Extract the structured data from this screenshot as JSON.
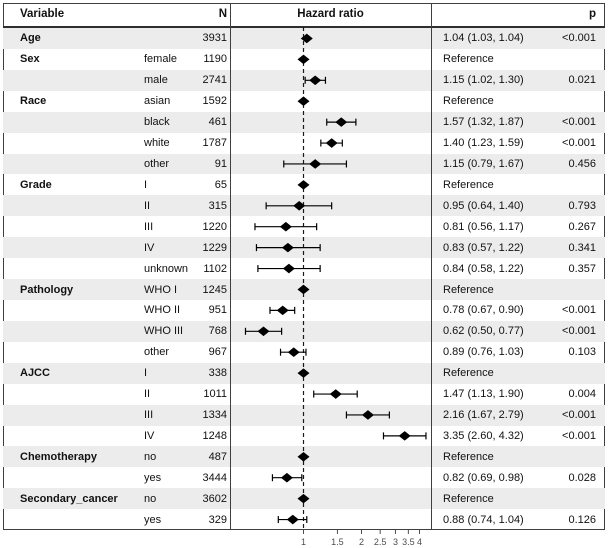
{
  "table": {
    "headers": {
      "variable": "Variable",
      "n": "N",
      "hazard_ratio": "Hazard ratio",
      "p": "p"
    }
  },
  "chart_data": {
    "type": "forest",
    "title": "Hazard ratio",
    "x_scale": "log",
    "x_domain": [
      0.42,
      4.6
    ],
    "x_ticks": [
      1,
      1.5,
      2,
      2.5,
      3,
      3.5,
      4
    ],
    "reference_line": 1,
    "legend": "none",
    "rows": [
      {
        "group": "Age",
        "level": "",
        "n": "3931",
        "ref": false,
        "hr": 1.04,
        "lo": 1.03,
        "hi": 1.04,
        "hr_text": "1.04 (1.03, 1.04)",
        "p": "<0.001"
      },
      {
        "group": "Sex",
        "level": "female",
        "n": "1190",
        "ref": true,
        "hr": 1.0,
        "lo": null,
        "hi": null,
        "hr_text": "Reference",
        "p": ""
      },
      {
        "group": "",
        "level": "male",
        "n": "2741",
        "ref": false,
        "hr": 1.15,
        "lo": 1.02,
        "hi": 1.3,
        "hr_text": "1.15 (1.02, 1.30)",
        "p": "0.021"
      },
      {
        "group": "Race",
        "level": "asian",
        "n": "1592",
        "ref": true,
        "hr": 1.0,
        "lo": null,
        "hi": null,
        "hr_text": "Reference",
        "p": ""
      },
      {
        "group": "",
        "level": "black",
        "n": "461",
        "ref": false,
        "hr": 1.57,
        "lo": 1.32,
        "hi": 1.87,
        "hr_text": "1.57 (1.32, 1.87)",
        "p": "<0.001"
      },
      {
        "group": "",
        "level": "white",
        "n": "1787",
        "ref": false,
        "hr": 1.4,
        "lo": 1.23,
        "hi": 1.59,
        "hr_text": "1.40 (1.23, 1.59)",
        "p": "<0.001"
      },
      {
        "group": "",
        "level": "other",
        "n": "91",
        "ref": false,
        "hr": 1.15,
        "lo": 0.79,
        "hi": 1.67,
        "hr_text": "1.15 (0.79, 1.67)",
        "p": "0.456"
      },
      {
        "group": "Grade",
        "level": "I",
        "n": "65",
        "ref": true,
        "hr": 1.0,
        "lo": null,
        "hi": null,
        "hr_text": "Reference",
        "p": ""
      },
      {
        "group": "",
        "level": "II",
        "n": "315",
        "ref": false,
        "hr": 0.95,
        "lo": 0.64,
        "hi": 1.4,
        "hr_text": "0.95 (0.64, 1.40)",
        "p": "0.793"
      },
      {
        "group": "",
        "level": "III",
        "n": "1220",
        "ref": false,
        "hr": 0.81,
        "lo": 0.56,
        "hi": 1.17,
        "hr_text": "0.81 (0.56, 1.17)",
        "p": "0.267"
      },
      {
        "group": "",
        "level": "IV",
        "n": "1229",
        "ref": false,
        "hr": 0.83,
        "lo": 0.57,
        "hi": 1.22,
        "hr_text": "0.83 (0.57, 1.22)",
        "p": "0.341"
      },
      {
        "group": "",
        "level": "unknown",
        "n": "1102",
        "ref": false,
        "hr": 0.84,
        "lo": 0.58,
        "hi": 1.22,
        "hr_text": "0.84 (0.58, 1.22)",
        "p": "0.357"
      },
      {
        "group": "Pathology",
        "level": "WHO I",
        "n": "1245",
        "ref": true,
        "hr": 1.0,
        "lo": null,
        "hi": null,
        "hr_text": "Reference",
        "p": ""
      },
      {
        "group": "",
        "level": "WHO II",
        "n": "951",
        "ref": false,
        "hr": 0.78,
        "lo": 0.67,
        "hi": 0.9,
        "hr_text": "0.78 (0.67, 0.90)",
        "p": "<0.001"
      },
      {
        "group": "",
        "level": "WHO III",
        "n": "768",
        "ref": false,
        "hr": 0.62,
        "lo": 0.5,
        "hi": 0.77,
        "hr_text": "0.62 (0.50, 0.77)",
        "p": "<0.001"
      },
      {
        "group": "",
        "level": "other",
        "n": "967",
        "ref": false,
        "hr": 0.89,
        "lo": 0.76,
        "hi": 1.03,
        "hr_text": "0.89 (0.76, 1.03)",
        "p": "0.103"
      },
      {
        "group": "AJCC",
        "level": "I",
        "n": "338",
        "ref": true,
        "hr": 1.0,
        "lo": null,
        "hi": null,
        "hr_text": "Reference",
        "p": ""
      },
      {
        "group": "",
        "level": "II",
        "n": "1011",
        "ref": false,
        "hr": 1.47,
        "lo": 1.13,
        "hi": 1.9,
        "hr_text": "1.47 (1.13, 1.90)",
        "p": "0.004"
      },
      {
        "group": "",
        "level": "III",
        "n": "1334",
        "ref": false,
        "hr": 2.16,
        "lo": 1.67,
        "hi": 2.79,
        "hr_text": "2.16 (1.67, 2.79)",
        "p": "<0.001"
      },
      {
        "group": "",
        "level": "IV",
        "n": "1248",
        "ref": false,
        "hr": 3.35,
        "lo": 2.6,
        "hi": 4.32,
        "hr_text": "3.35 (2.60, 4.32)",
        "p": "<0.001"
      },
      {
        "group": "Chemotherapy",
        "level": "no",
        "n": "487",
        "ref": true,
        "hr": 1.0,
        "lo": null,
        "hi": null,
        "hr_text": "Reference",
        "p": ""
      },
      {
        "group": "",
        "level": "yes",
        "n": "3444",
        "ref": false,
        "hr": 0.82,
        "lo": 0.69,
        "hi": 0.98,
        "hr_text": "0.82 (0.69, 0.98)",
        "p": "0.028"
      },
      {
        "group": "Secondary_cancer",
        "level": "no",
        "n": "3602",
        "ref": true,
        "hr": 1.0,
        "lo": null,
        "hi": null,
        "hr_text": "Reference",
        "p": ""
      },
      {
        "group": "",
        "level": "yes",
        "n": "329",
        "ref": false,
        "hr": 0.88,
        "lo": 0.74,
        "hi": 1.04,
        "hr_text": "0.88 (0.74, 1.04)",
        "p": "0.126"
      }
    ]
  },
  "colors": {
    "stripe": "#ececec",
    "border": "#3f3f3f",
    "marker": "#000000",
    "reference_line": "#1a1a1a",
    "axis_text": "#4d4d4d"
  }
}
